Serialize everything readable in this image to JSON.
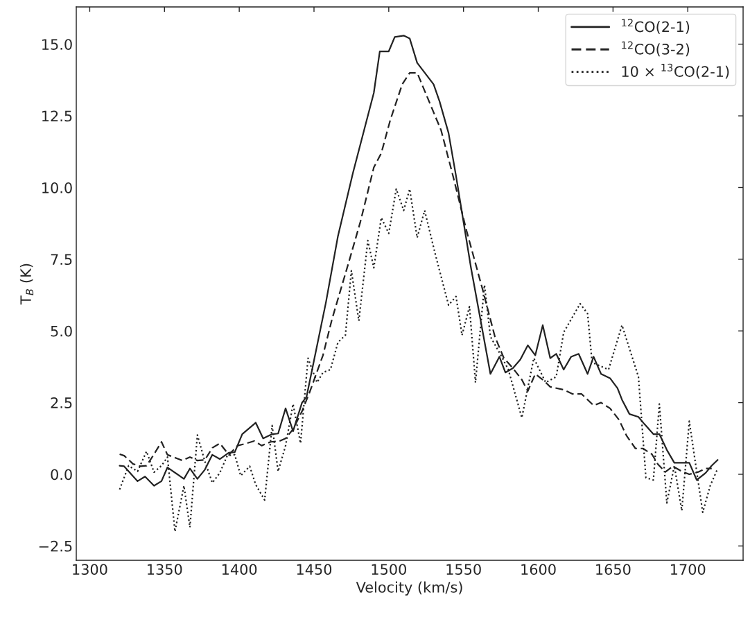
{
  "chart_data": {
    "type": "line",
    "xlabel": "Velocity (km/s)",
    "ylabel": "T$_{B}$ (K)",
    "xlim": [
      1291,
      1737
    ],
    "ylim": [
      -3.0,
      16.3
    ],
    "xticks": [
      1300,
      1350,
      1400,
      1450,
      1500,
      1550,
      1600,
      1650,
      1700
    ],
    "yticks": [
      {
        "value": -2.5,
        "label": "−2.5"
      },
      {
        "value": 0,
        "label": "0.0"
      },
      2.5,
      {
        "value": 5,
        "label": "5.0"
      },
      7.5,
      {
        "value": 10,
        "label": "10.0"
      },
      12.5,
      {
        "value": 15,
        "label": "15.0"
      }
    ],
    "grid": false,
    "legend": "top right",
    "series": [
      {
        "name": "$^{12}$CO(2-1)",
        "color": "#222222",
        "line_style": "solid",
        "x": [
          1320,
          1323,
          1332,
          1337,
          1343,
          1348,
          1352,
          1363,
          1367,
          1372,
          1377,
          1382,
          1387,
          1393,
          1397,
          1402,
          1411,
          1416,
          1422,
          1426,
          1431,
          1436,
          1442,
          1445,
          1458,
          1466,
          1476,
          1490,
          1494,
          1500,
          1504,
          1510,
          1514,
          1519,
          1530,
          1534,
          1540,
          1545,
          1555,
          1568,
          1574,
          1578,
          1583,
          1588,
          1593,
          1598,
          1603,
          1608,
          1612,
          1617,
          1622,
          1627,
          1633,
          1637,
          1642,
          1648,
          1653,
          1656,
          1661,
          1667,
          1671,
          1677,
          1681,
          1686,
          1691,
          1696,
          1701,
          1706,
          1712,
          1716,
          1720
        ],
        "values": [
          0.3,
          0.28,
          -0.24,
          -0.08,
          -0.4,
          -0.24,
          0.24,
          -0.16,
          0.2,
          -0.16,
          0.16,
          0.68,
          0.53,
          0.75,
          0.77,
          1.4,
          1.8,
          1.25,
          1.4,
          1.42,
          2.3,
          1.5,
          2.5,
          2.7,
          6.0,
          8.3,
          10.5,
          13.3,
          14.75,
          14.75,
          15.25,
          15.3,
          15.2,
          14.35,
          13.6,
          13.0,
          11.9,
          10.4,
          7.2,
          3.5,
          4.1,
          3.55,
          3.7,
          4.0,
          4.5,
          4.15,
          5.2,
          4.05,
          4.2,
          3.65,
          4.1,
          4.2,
          3.5,
          4.1,
          3.5,
          3.35,
          3.0,
          2.6,
          2.1,
          2.0,
          1.75,
          1.4,
          1.4,
          0.85,
          0.4,
          0.4,
          0.4,
          -0.2,
          0.05,
          0.3,
          0.5
        ]
      },
      {
        "name": "$^{12}$CO(3-2)",
        "color": "#222222",
        "line_style": "dashed",
        "x": [
          1320,
          1323,
          1329,
          1334,
          1338,
          1343,
          1348,
          1352,
          1362,
          1367,
          1372,
          1377,
          1382,
          1387,
          1393,
          1399,
          1405,
          1410,
          1415,
          1421,
          1427,
          1431,
          1436,
          1442,
          1447,
          1456,
          1462,
          1473,
          1481,
          1490,
          1495,
          1501,
          1509,
          1514,
          1519,
          1527,
          1535,
          1543,
          1552,
          1563,
          1571,
          1577,
          1583,
          1589,
          1593,
          1598,
          1603,
          1608,
          1617,
          1623,
          1629,
          1637,
          1642,
          1648,
          1654,
          1659,
          1665,
          1670,
          1676,
          1680,
          1685,
          1690,
          1696,
          1701,
          1707,
          1712,
          1716
        ],
        "values": [
          0.7,
          0.65,
          0.36,
          0.28,
          0.3,
          0.7,
          1.13,
          0.68,
          0.48,
          0.6,
          0.48,
          0.5,
          0.92,
          1.08,
          0.68,
          1.0,
          1.08,
          1.16,
          1.0,
          1.13,
          1.16,
          1.25,
          1.57,
          2.2,
          2.85,
          4.15,
          5.4,
          7.35,
          8.8,
          10.7,
          11.2,
          12.35,
          13.6,
          14.0,
          14.0,
          13.0,
          12.0,
          10.4,
          8.5,
          6.4,
          4.8,
          4.05,
          3.7,
          3.3,
          2.9,
          3.5,
          3.3,
          3.05,
          2.95,
          2.8,
          2.8,
          2.4,
          2.5,
          2.3,
          1.9,
          1.35,
          0.9,
          0.9,
          0.7,
          0.35,
          0.08,
          0.28,
          0.1,
          0.0,
          0.08,
          0.2,
          0.2
        ]
      },
      {
        "name": "10 × $^{13}$CO(2-1)",
        "color": "#222222",
        "line_style": "dotted",
        "x": [
          1320,
          1326,
          1332,
          1338,
          1343,
          1348,
          1352,
          1357,
          1363,
          1367,
          1372,
          1377,
          1382,
          1387,
          1392,
          1397,
          1401,
          1407,
          1411,
          1417,
          1422,
          1426,
          1431,
          1436,
          1441,
          1446,
          1452,
          1456,
          1461,
          1466,
          1471,
          1475,
          1480,
          1486,
          1490,
          1495,
          1500,
          1505,
          1510,
          1514,
          1519,
          1524,
          1531,
          1540,
          1545,
          1549,
          1554,
          1558,
          1564,
          1568,
          1575,
          1580,
          1589,
          1597,
          1605,
          1612,
          1617,
          1628,
          1633,
          1636,
          1647,
          1656,
          1667,
          1672,
          1677,
          1681,
          1686,
          1691,
          1696,
          1701,
          1710,
          1715,
          1720
        ],
        "values": [
          -0.53,
          0.3,
          0.1,
          0.8,
          0.07,
          0.3,
          0.6,
          -2.0,
          -0.4,
          -1.85,
          1.37,
          0.45,
          -0.3,
          0.05,
          0.65,
          0.68,
          -0.05,
          0.28,
          -0.36,
          -0.9,
          1.7,
          0.1,
          1.0,
          2.45,
          1.08,
          4.05,
          3.2,
          3.55,
          3.65,
          4.6,
          4.85,
          7.1,
          5.35,
          8.15,
          7.2,
          8.95,
          8.4,
          9.95,
          9.2,
          9.95,
          8.25,
          9.2,
          7.7,
          5.9,
          6.2,
          4.85,
          5.85,
          3.2,
          6.6,
          4.8,
          4.15,
          3.65,
          1.97,
          4.05,
          3.2,
          3.4,
          4.95,
          5.95,
          5.6,
          3.9,
          3.65,
          5.2,
          3.4,
          -0.12,
          -0.2,
          2.45,
          -1.0,
          0.3,
          -1.27,
          1.85,
          -1.33,
          -0.4,
          0.2
        ]
      }
    ]
  }
}
